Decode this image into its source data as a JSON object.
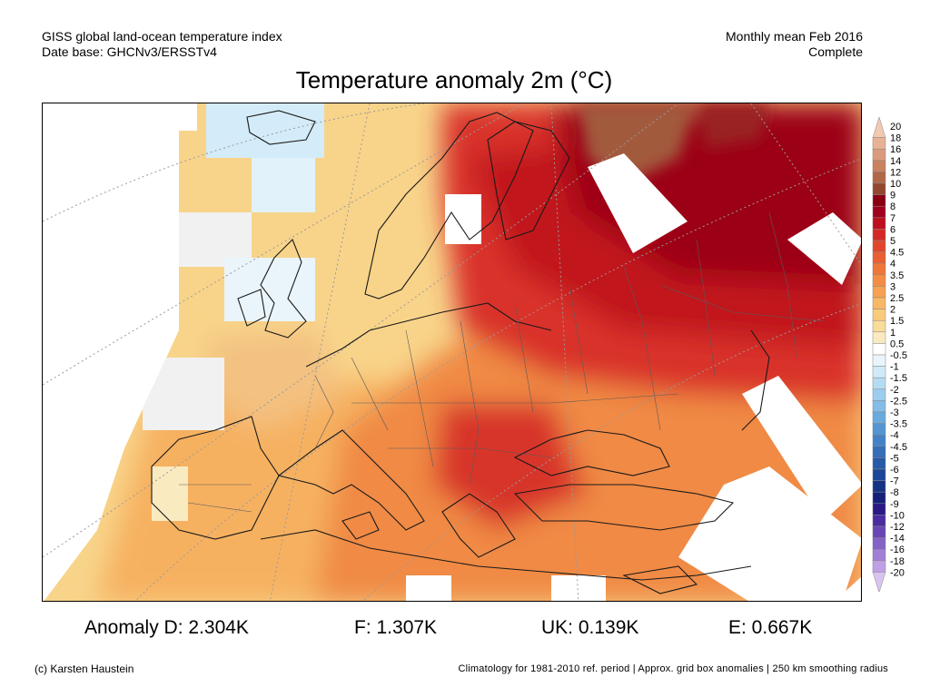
{
  "header": {
    "left_line1": "GISS global land-ocean temperature index",
    "left_line2": "Date base: GHCNv3/ERSSTv4",
    "right_line1": "Monthly mean Feb 2016",
    "right_line2": "Complete"
  },
  "title": "Temperature anomaly 2m (°C)",
  "stats": {
    "d": "Anomaly D: 2.304K",
    "f": "F: 1.307K",
    "uk": "UK: 0.139K",
    "e": "E: 0.667K"
  },
  "footer": {
    "left": "(c) Karsten Haustein",
    "right": "Climatology for 1981-2010 ref. period | Approx. grid box anomalies | 250 km smoothing radius"
  },
  "legend": {
    "labels": [
      "20",
      "18",
      "16",
      "14",
      "12",
      "10",
      "9",
      "8",
      "7",
      "6",
      "5",
      "4.5",
      "4",
      "3.5",
      "3",
      "2.5",
      "2",
      "1.5",
      "1",
      "0.5",
      "-0.5",
      "-1",
      "-1.5",
      "-2",
      "-2.5",
      "-3",
      "-3.5",
      "-4",
      "-4.5",
      "-5",
      "-6",
      "-7",
      "-8",
      "-9",
      "-10",
      "-12",
      "-14",
      "-16",
      "-18",
      "-20"
    ],
    "colors": [
      "#f3c9b2",
      "#e8b295",
      "#dc9a7c",
      "#c9825f",
      "#b06848",
      "#92482e",
      "#880012",
      "#a0001e",
      "#be0f1f",
      "#d42a26",
      "#e1462c",
      "#e95e33",
      "#ef7639",
      "#f38d44",
      "#f6a252",
      "#f8b863",
      "#f9cb7b",
      "#f9dc99",
      "#faeac0",
      "#ffffff",
      "#e9f4fb",
      "#d0eaf8",
      "#b6dcf3",
      "#9dcdee",
      "#84bde6",
      "#6aaadd",
      "#5596d2",
      "#4482c6",
      "#346db8",
      "#275aa9",
      "#1c4697",
      "#153384",
      "#14207a",
      "#2a1a86",
      "#4a2d9e",
      "#6846b4",
      "#8562c6",
      "#a27fd6",
      "#bfa0e4",
      "#d9c4f0"
    ]
  }
}
